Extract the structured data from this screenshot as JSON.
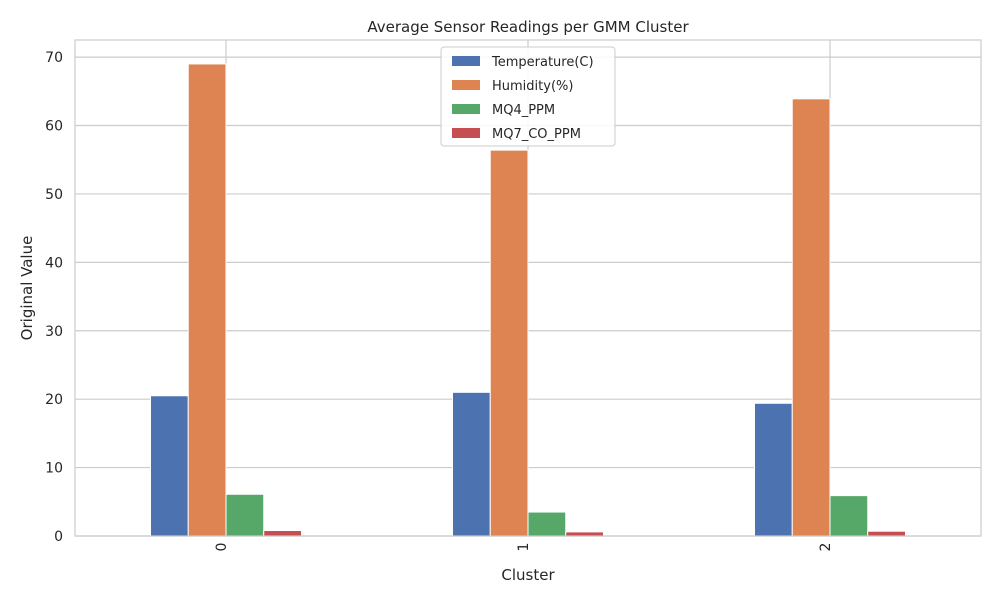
{
  "chart_data": {
    "type": "bar",
    "title": "Average Sensor Readings per GMM Cluster",
    "xlabel": "Cluster",
    "ylabel": "Original Value",
    "categories": [
      "0",
      "1",
      "2"
    ],
    "ylim": [
      0,
      72.5
    ],
    "yticks": [
      0,
      10,
      20,
      30,
      40,
      50,
      60,
      70
    ],
    "grid": true,
    "legend_position": "top-center",
    "series": [
      {
        "name": "Temperature(C)",
        "color": "#4c72b0",
        "values": [
          20.5,
          21.0,
          19.4
        ]
      },
      {
        "name": "Humidity(%)",
        "color": "#dd8452",
        "values": [
          69.0,
          56.4,
          63.9
        ]
      },
      {
        "name": "MQ4_PPM",
        "color": "#55a868",
        "values": [
          6.1,
          3.5,
          5.9
        ]
      },
      {
        "name": "MQ7_CO_PPM",
        "color": "#c44e52",
        "values": [
          0.8,
          0.6,
          0.7
        ]
      }
    ]
  }
}
